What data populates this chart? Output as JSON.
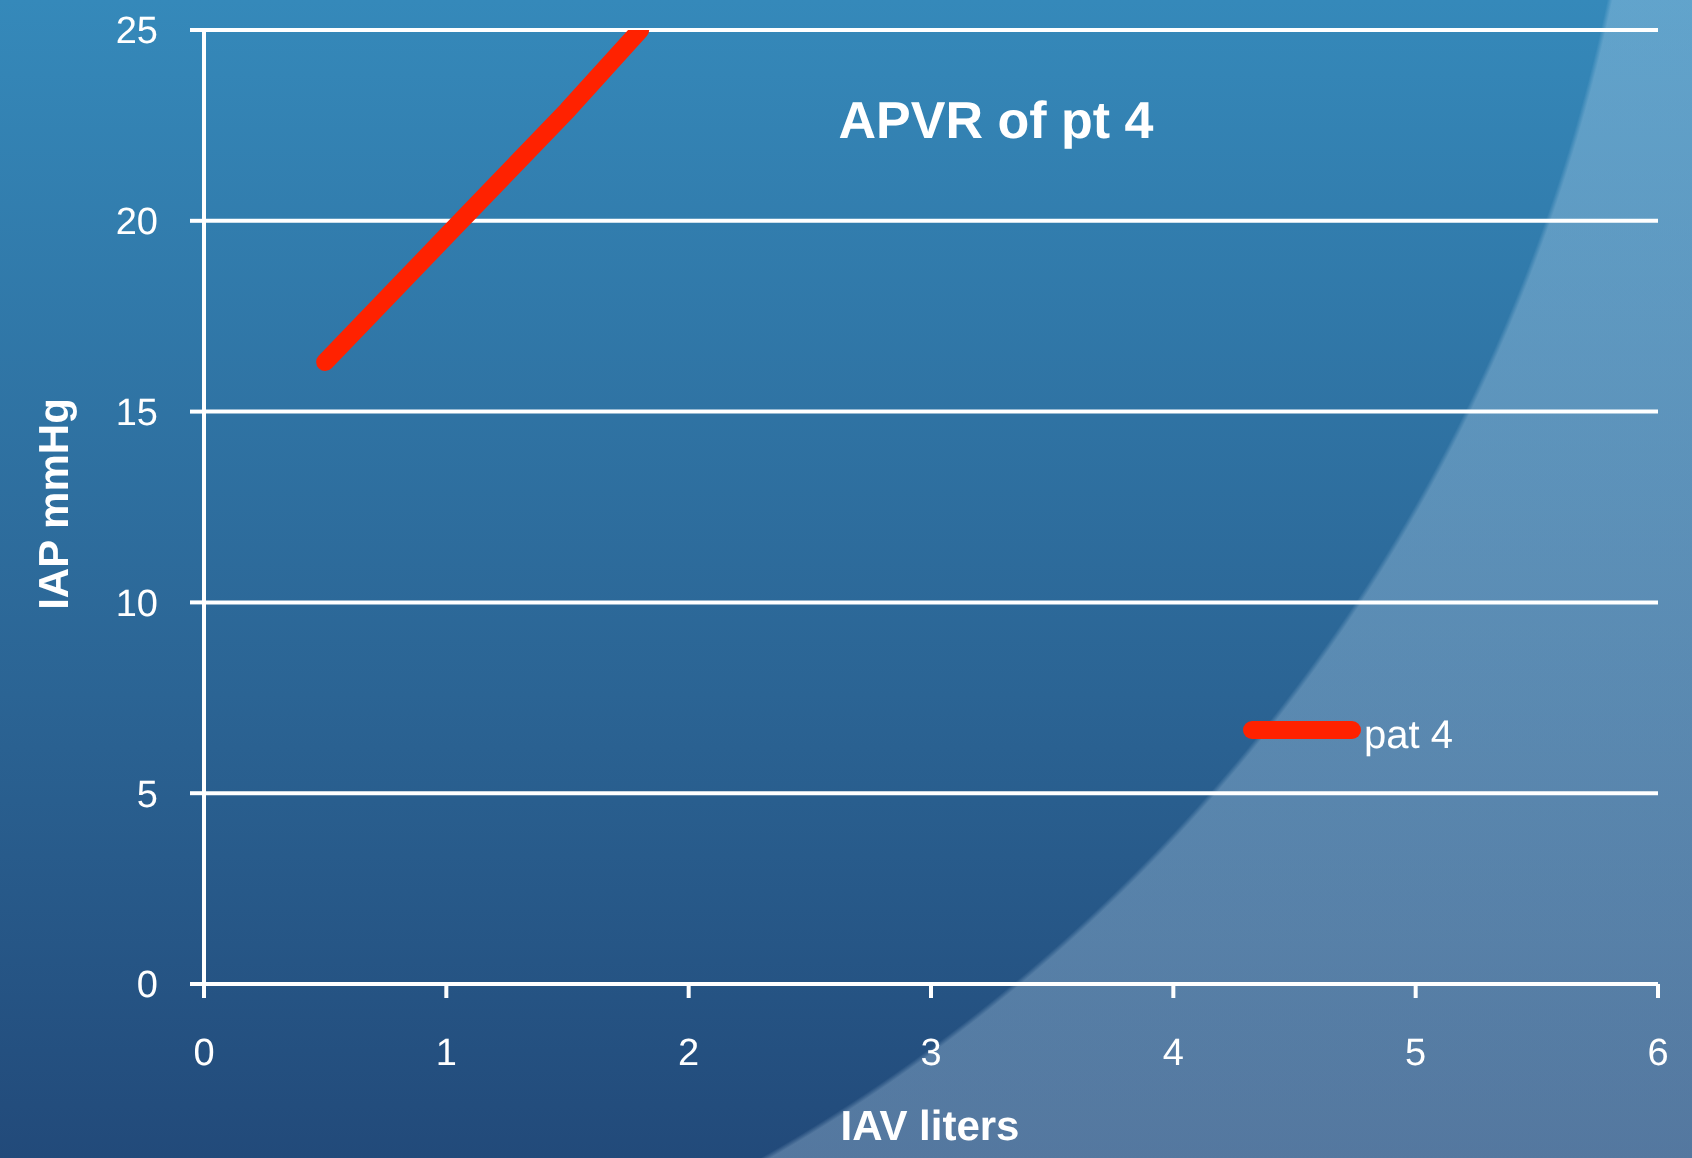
{
  "chart_data": {
    "type": "line",
    "title": "APVR of pt 4",
    "xlabel": "IAV liters",
    "ylabel": "IAP mmHg",
    "x": [
      0.5,
      1,
      1.5,
      1.8
    ],
    "series": [
      {
        "name": "pat 4",
        "color": "#ff2200",
        "values": [
          16.3,
          19.6,
          22.9,
          25
        ]
      }
    ],
    "xlim": [
      0,
      6
    ],
    "xticks": [
      0,
      1,
      2,
      3,
      4,
      5,
      6
    ],
    "ylim": [
      0,
      25
    ],
    "yticks": [
      0,
      5,
      10,
      15,
      20,
      25
    ],
    "grid": "y",
    "legend": "right",
    "marker": "none"
  }
}
